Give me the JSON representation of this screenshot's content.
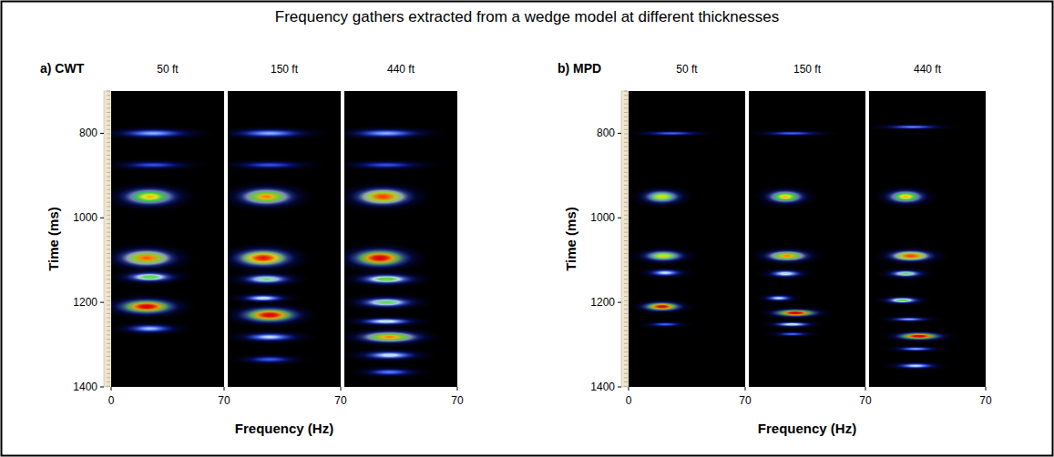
{
  "title": "Frequency gathers extracted from a wedge model at different thicknesses",
  "chart_data": [
    {
      "type": "heatmap",
      "label": "a) CWT",
      "x_label": "Frequency (Hz)",
      "y_label": "Time (ms)",
      "ylim": [
        700,
        1400
      ],
      "yticks": [
        800,
        1000,
        1200,
        1400
      ],
      "panels": [
        {
          "title": "50 ft",
          "xlim": [
            0,
            70
          ],
          "xticks": [
            0,
            70
          ],
          "blobs": [
            {
              "time": 800,
              "frequency": 26,
              "time_spread": 12,
              "frequency_spread": 26,
              "amplitude": 0.3
            },
            {
              "time": 875,
              "frequency": 26,
              "time_spread": 10,
              "frequency_spread": 24,
              "amplitude": 0.18
            },
            {
              "time": 950,
              "frequency": 24,
              "time_spread": 24,
              "frequency_spread": 20,
              "amplitude": 0.66
            },
            {
              "time": 1095,
              "frequency": 22,
              "time_spread": 24,
              "frequency_spread": 20,
              "amplitude": 0.76
            },
            {
              "time": 1140,
              "frequency": 24,
              "time_spread": 14,
              "frequency_spread": 18,
              "amplitude": 0.5
            },
            {
              "time": 1210,
              "frequency": 22,
              "time_spread": 20,
              "frequency_spread": 20,
              "amplitude": 0.92
            },
            {
              "time": 1262,
              "frequency": 24,
              "time_spread": 12,
              "frequency_spread": 18,
              "amplitude": 0.32
            }
          ]
        },
        {
          "title": "150 ft",
          "xlim": [
            0,
            70
          ],
          "xticks": [
            70
          ],
          "tick_labels": "x",
          "blobs": [
            {
              "time": 800,
              "frequency": 26,
              "time_spread": 12,
              "frequency_spread": 26,
              "amplitude": 0.3
            },
            {
              "time": 875,
              "frequency": 26,
              "time_spread": 10,
              "frequency_spread": 24,
              "amplitude": 0.18
            },
            {
              "time": 950,
              "frequency": 24,
              "time_spread": 24,
              "frequency_spread": 20,
              "amplitude": 0.72
            },
            {
              "time": 1095,
              "frequency": 22,
              "time_spread": 24,
              "frequency_spread": 20,
              "amplitude": 0.86
            },
            {
              "time": 1145,
              "frequency": 24,
              "time_spread": 14,
              "frequency_spread": 18,
              "amplitude": 0.45
            },
            {
              "time": 1190,
              "frequency": 22,
              "time_spread": 10,
              "frequency_spread": 16,
              "amplitude": 0.38
            },
            {
              "time": 1230,
              "frequency": 26,
              "time_spread": 20,
              "frequency_spread": 20,
              "amplitude": 0.92
            },
            {
              "time": 1282,
              "frequency": 26,
              "time_spread": 12,
              "frequency_spread": 20,
              "amplitude": 0.35
            },
            {
              "time": 1335,
              "frequency": 26,
              "time_spread": 10,
              "frequency_spread": 18,
              "amplitude": 0.2
            }
          ]
        },
        {
          "title": "440 ft",
          "xlim": [
            0,
            70
          ],
          "xticks": [
            70
          ],
          "tick_labels": "x",
          "blobs": [
            {
              "time": 800,
              "frequency": 26,
              "time_spread": 12,
              "frequency_spread": 26,
              "amplitude": 0.3
            },
            {
              "time": 875,
              "frequency": 26,
              "time_spread": 10,
              "frequency_spread": 24,
              "amplitude": 0.18
            },
            {
              "time": 950,
              "frequency": 24,
              "time_spread": 24,
              "frequency_spread": 20,
              "amplitude": 0.8
            },
            {
              "time": 1095,
              "frequency": 22,
              "time_spread": 24,
              "frequency_spread": 20,
              "amplitude": 0.92
            },
            {
              "time": 1145,
              "frequency": 26,
              "time_spread": 14,
              "frequency_spread": 20,
              "amplitude": 0.52
            },
            {
              "time": 1200,
              "frequency": 26,
              "time_spread": 14,
              "frequency_spread": 20,
              "amplitude": 0.48
            },
            {
              "time": 1245,
              "frequency": 26,
              "time_spread": 10,
              "frequency_spread": 20,
              "amplitude": 0.4
            },
            {
              "time": 1282,
              "frequency": 28,
              "time_spread": 16,
              "frequency_spread": 22,
              "amplitude": 0.72
            },
            {
              "time": 1325,
              "frequency": 28,
              "time_spread": 12,
              "frequency_spread": 20,
              "amplitude": 0.38
            },
            {
              "time": 1365,
              "frequency": 28,
              "time_spread": 10,
              "frequency_spread": 18,
              "amplitude": 0.25
            }
          ]
        }
      ]
    },
    {
      "type": "heatmap",
      "label": "b) MPD",
      "x_label": "Frequency (Hz)",
      "y_label": "Time (ms)",
      "ylim": [
        700,
        1400
      ],
      "yticks": [
        800,
        1000,
        1200,
        1400
      ],
      "panels": [
        {
          "title": "50 ft",
          "xlim": [
            0,
            70
          ],
          "xticks": [
            0,
            70
          ],
          "blobs": [
            {
              "time": 800,
              "frequency": 26,
              "time_spread": 6,
              "frequency_spread": 20,
              "amplitude": 0.22
            },
            {
              "time": 950,
              "frequency": 20,
              "time_spread": 18,
              "frequency_spread": 13,
              "amplitude": 0.62
            },
            {
              "time": 1090,
              "frequency": 21,
              "time_spread": 15,
              "frequency_spread": 14,
              "amplitude": 0.62
            },
            {
              "time": 1130,
              "frequency": 22,
              "time_spread": 10,
              "frequency_spread": 12,
              "amplitude": 0.36
            },
            {
              "time": 1210,
              "frequency": 20,
              "time_spread": 12,
              "frequency_spread": 13,
              "amplitude": 0.92
            },
            {
              "time": 1252,
              "frequency": 22,
              "time_spread": 6,
              "frequency_spread": 12,
              "amplitude": 0.22
            }
          ]
        },
        {
          "title": "150 ft",
          "xlim": [
            0,
            70
          ],
          "xticks": [
            70
          ],
          "tick_labels": "x",
          "blobs": [
            {
              "time": 800,
              "frequency": 26,
              "time_spread": 6,
              "frequency_spread": 20,
              "amplitude": 0.22
            },
            {
              "time": 950,
              "frequency": 22,
              "time_spread": 18,
              "frequency_spread": 13,
              "amplitude": 0.66
            },
            {
              "time": 1090,
              "frequency": 23,
              "time_spread": 15,
              "frequency_spread": 15,
              "amplitude": 0.72
            },
            {
              "time": 1132,
              "frequency": 22,
              "time_spread": 10,
              "frequency_spread": 12,
              "amplitude": 0.4
            },
            {
              "time": 1190,
              "frequency": 18,
              "time_spread": 8,
              "frequency_spread": 10,
              "amplitude": 0.36
            },
            {
              "time": 1225,
              "frequency": 28,
              "time_spread": 10,
              "frequency_spread": 15,
              "amplitude": 0.95
            },
            {
              "time": 1252,
              "frequency": 26,
              "time_spread": 7,
              "frequency_spread": 14,
              "amplitude": 0.4
            },
            {
              "time": 1275,
              "frequency": 26,
              "time_spread": 6,
              "frequency_spread": 12,
              "amplitude": 0.22
            }
          ]
        },
        {
          "title": "440 ft",
          "xlim": [
            0,
            70
          ],
          "xticks": [
            70
          ],
          "tick_labels": "x",
          "blobs": [
            {
              "time": 785,
              "frequency": 26,
              "time_spread": 6,
              "frequency_spread": 20,
              "amplitude": 0.26
            },
            {
              "time": 950,
              "frequency": 22,
              "time_spread": 18,
              "frequency_spread": 13,
              "amplitude": 0.66
            },
            {
              "time": 1090,
              "frequency": 25,
              "time_spread": 15,
              "frequency_spread": 15,
              "amplitude": 0.8
            },
            {
              "time": 1132,
              "frequency": 22,
              "time_spread": 10,
              "frequency_spread": 12,
              "amplitude": 0.46
            },
            {
              "time": 1195,
              "frequency": 20,
              "time_spread": 9,
              "frequency_spread": 12,
              "amplitude": 0.5
            },
            {
              "time": 1240,
              "frequency": 24,
              "time_spread": 6,
              "frequency_spread": 14,
              "amplitude": 0.3
            },
            {
              "time": 1280,
              "frequency": 30,
              "time_spread": 10,
              "frequency_spread": 15,
              "amplitude": 0.95
            },
            {
              "time": 1310,
              "frequency": 28,
              "time_spread": 6,
              "frequency_spread": 14,
              "amplitude": 0.3
            },
            {
              "time": 1350,
              "frequency": 28,
              "time_spread": 8,
              "frequency_spread": 14,
              "amplitude": 0.36
            }
          ]
        }
      ]
    }
  ]
}
